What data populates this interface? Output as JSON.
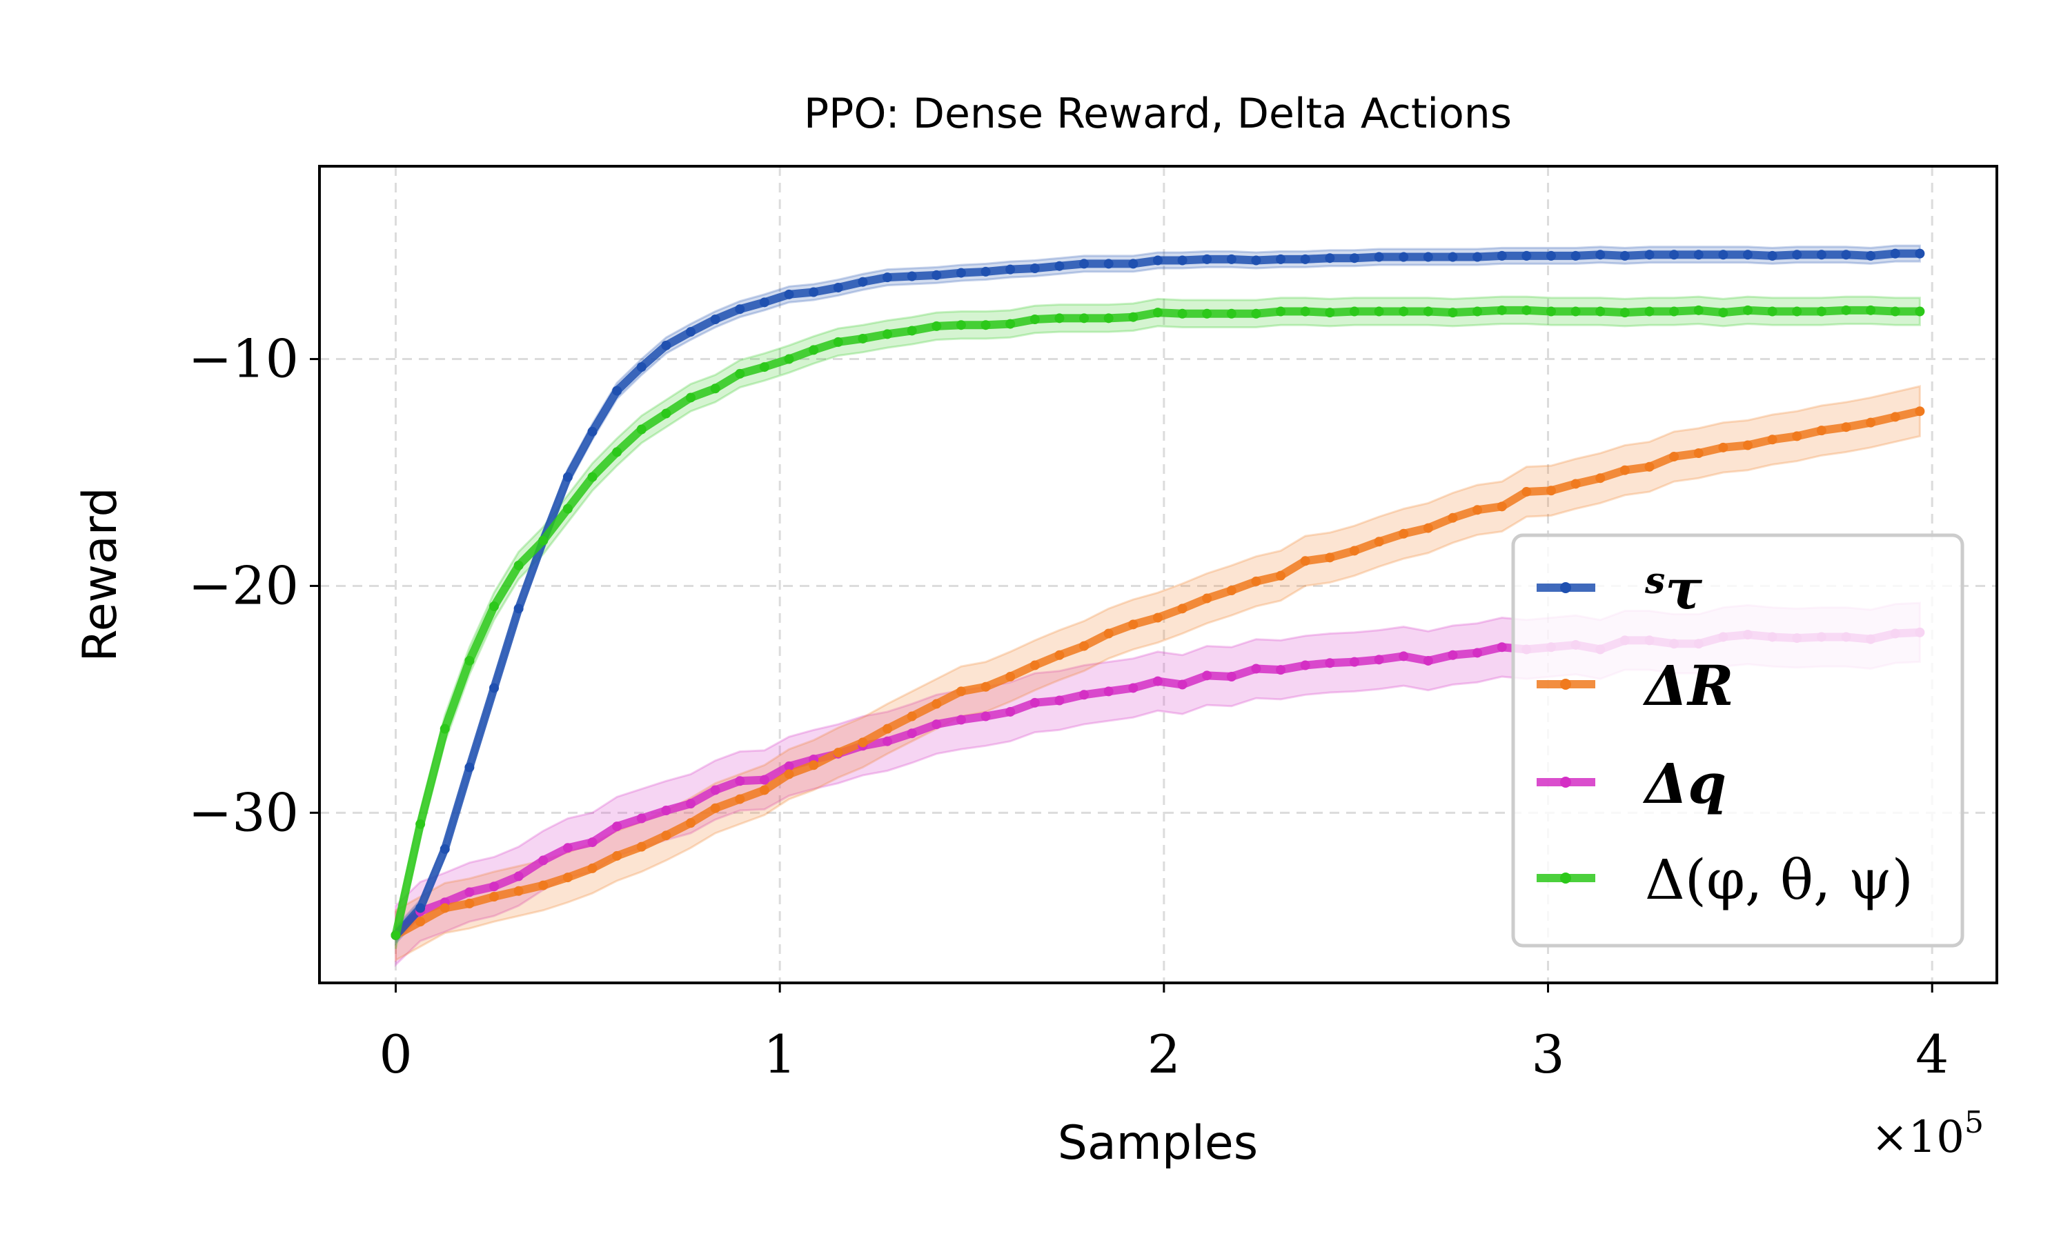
{
  "chart_data": {
    "type": "line",
    "title": "PPO: Dense Reward, Delta Actions",
    "xlabel": "Samples",
    "ylabel": "Reward",
    "x_offset_label": {
      "base": "×10",
      "exp": "5"
    },
    "xlim": [
      -19850,
      416850
    ],
    "ylim": [
      -37.5,
      -1.5
    ],
    "xticks": [
      {
        "value": 0,
        "label": "0"
      },
      {
        "value": 100000,
        "label": "1"
      },
      {
        "value": 200000,
        "label": "2"
      },
      {
        "value": 300000,
        "label": "3"
      },
      {
        "value": 400000,
        "label": "4"
      }
    ],
    "yticks": [
      {
        "value": -10,
        "label": "−10"
      },
      {
        "value": -20,
        "label": "−20"
      },
      {
        "value": -30,
        "label": "−30"
      }
    ],
    "grid": true,
    "legend_position": "lower-right",
    "x": [
      0,
      6400,
      12800,
      19200,
      25600,
      32000,
      38400,
      44800,
      51200,
      57600,
      64000,
      70400,
      76800,
      83200,
      89600,
      96000,
      102400,
      108800,
      115200,
      121600,
      128000,
      134400,
      140800,
      147200,
      153600,
      160000,
      166400,
      172800,
      179200,
      185600,
      192000,
      198400,
      204800,
      211200,
      217600,
      224000,
      230400,
      236800,
      243200,
      249600,
      256000,
      262400,
      268800,
      275200,
      281600,
      288000,
      294400,
      300800,
      307200,
      313600,
      320000,
      326400,
      332800,
      339200,
      345600,
      352000,
      358400,
      364800,
      371200,
      377600,
      384000,
      390400,
      396800
    ],
    "series": [
      {
        "name": "τ",
        "name_sup": "s",
        "color": "#1f50b0",
        "band": 0.35,
        "values": [
          -35.4,
          -34.2,
          -31.6,
          -28.0,
          -24.5,
          -21.0,
          -18.0,
          -15.2,
          -13.2,
          -11.4,
          -10.35,
          -9.4,
          -8.8,
          -8.25,
          -7.8,
          -7.5,
          -7.15,
          -7.05,
          -6.85,
          -6.6,
          -6.4,
          -6.35,
          -6.3,
          -6.2,
          -6.15,
          -6.05,
          -6.0,
          -5.9,
          -5.8,
          -5.8,
          -5.8,
          -5.65,
          -5.65,
          -5.6,
          -5.6,
          -5.65,
          -5.6,
          -5.6,
          -5.55,
          -5.55,
          -5.5,
          -5.5,
          -5.5,
          -5.5,
          -5.5,
          -5.45,
          -5.45,
          -5.45,
          -5.45,
          -5.4,
          -5.45,
          -5.4,
          -5.4,
          -5.4,
          -5.4,
          -5.4,
          -5.45,
          -5.4,
          -5.4,
          -5.4,
          -5.45,
          -5.35,
          -5.35
        ]
      },
      {
        "name": "ΔR",
        "name_sup": "",
        "color": "#f07a1e",
        "band": 1.1,
        "values": [
          -35.4,
          -34.8,
          -34.2,
          -34.0,
          -33.7,
          -33.45,
          -33.2,
          -32.85,
          -32.45,
          -31.9,
          -31.5,
          -31.0,
          -30.45,
          -29.8,
          -29.4,
          -29.0,
          -28.3,
          -27.9,
          -27.35,
          -26.9,
          -26.3,
          -25.75,
          -25.2,
          -24.65,
          -24.45,
          -24.0,
          -23.5,
          -23.05,
          -22.65,
          -22.1,
          -21.7,
          -21.4,
          -21.0,
          -20.55,
          -20.2,
          -19.8,
          -19.55,
          -18.9,
          -18.75,
          -18.45,
          -18.05,
          -17.7,
          -17.45,
          -17.0,
          -16.65,
          -16.5,
          -15.85,
          -15.8,
          -15.5,
          -15.25,
          -14.9,
          -14.75,
          -14.3,
          -14.15,
          -13.9,
          -13.8,
          -13.55,
          -13.4,
          -13.15,
          -13.0,
          -12.8,
          -12.55,
          -12.3
        ]
      },
      {
        "name": "Δq",
        "name_sup": "",
        "color": "#d42fc4",
        "band": 1.3,
        "values": [
          -35.4,
          -34.35,
          -33.95,
          -33.5,
          -33.25,
          -32.8,
          -32.1,
          -31.55,
          -31.3,
          -30.6,
          -30.25,
          -29.9,
          -29.6,
          -29.0,
          -28.6,
          -28.55,
          -27.95,
          -27.65,
          -27.4,
          -27.05,
          -26.85,
          -26.5,
          -26.1,
          -25.9,
          -25.75,
          -25.55,
          -25.15,
          -25.05,
          -24.8,
          -24.65,
          -24.5,
          -24.2,
          -24.35,
          -23.95,
          -24.0,
          -23.65,
          -23.7,
          -23.5,
          -23.4,
          -23.35,
          -23.25,
          -23.1,
          -23.3,
          -23.05,
          -22.95,
          -22.7,
          -22.8,
          -22.7,
          -22.6,
          -22.8,
          -22.4,
          -22.4,
          -22.55,
          -22.55,
          -22.25,
          -22.15,
          -22.25,
          -22.3,
          -22.25,
          -22.25,
          -22.35,
          -22.1,
          -22.05
        ]
      },
      {
        "name": "Δ(φ, θ, ψ)",
        "name_sup": "",
        "color": "#2cc81a",
        "band": 0.6,
        "values": [
          -35.4,
          -30.5,
          -26.3,
          -23.3,
          -20.9,
          -19.1,
          -18.0,
          -16.6,
          -15.2,
          -14.1,
          -13.1,
          -12.4,
          -11.7,
          -11.3,
          -10.65,
          -10.35,
          -10.0,
          -9.6,
          -9.25,
          -9.1,
          -8.9,
          -8.75,
          -8.55,
          -8.5,
          -8.5,
          -8.45,
          -8.25,
          -8.2,
          -8.2,
          -8.2,
          -8.15,
          -7.95,
          -8.0,
          -8.0,
          -8.0,
          -8.0,
          -7.9,
          -7.9,
          -7.95,
          -7.9,
          -7.9,
          -7.9,
          -7.9,
          -7.95,
          -7.9,
          -7.85,
          -7.85,
          -7.9,
          -7.9,
          -7.9,
          -7.95,
          -7.9,
          -7.9,
          -7.85,
          -7.95,
          -7.85,
          -7.9,
          -7.9,
          -7.9,
          -7.85,
          -7.85,
          -7.9,
          -7.9
        ]
      }
    ]
  }
}
